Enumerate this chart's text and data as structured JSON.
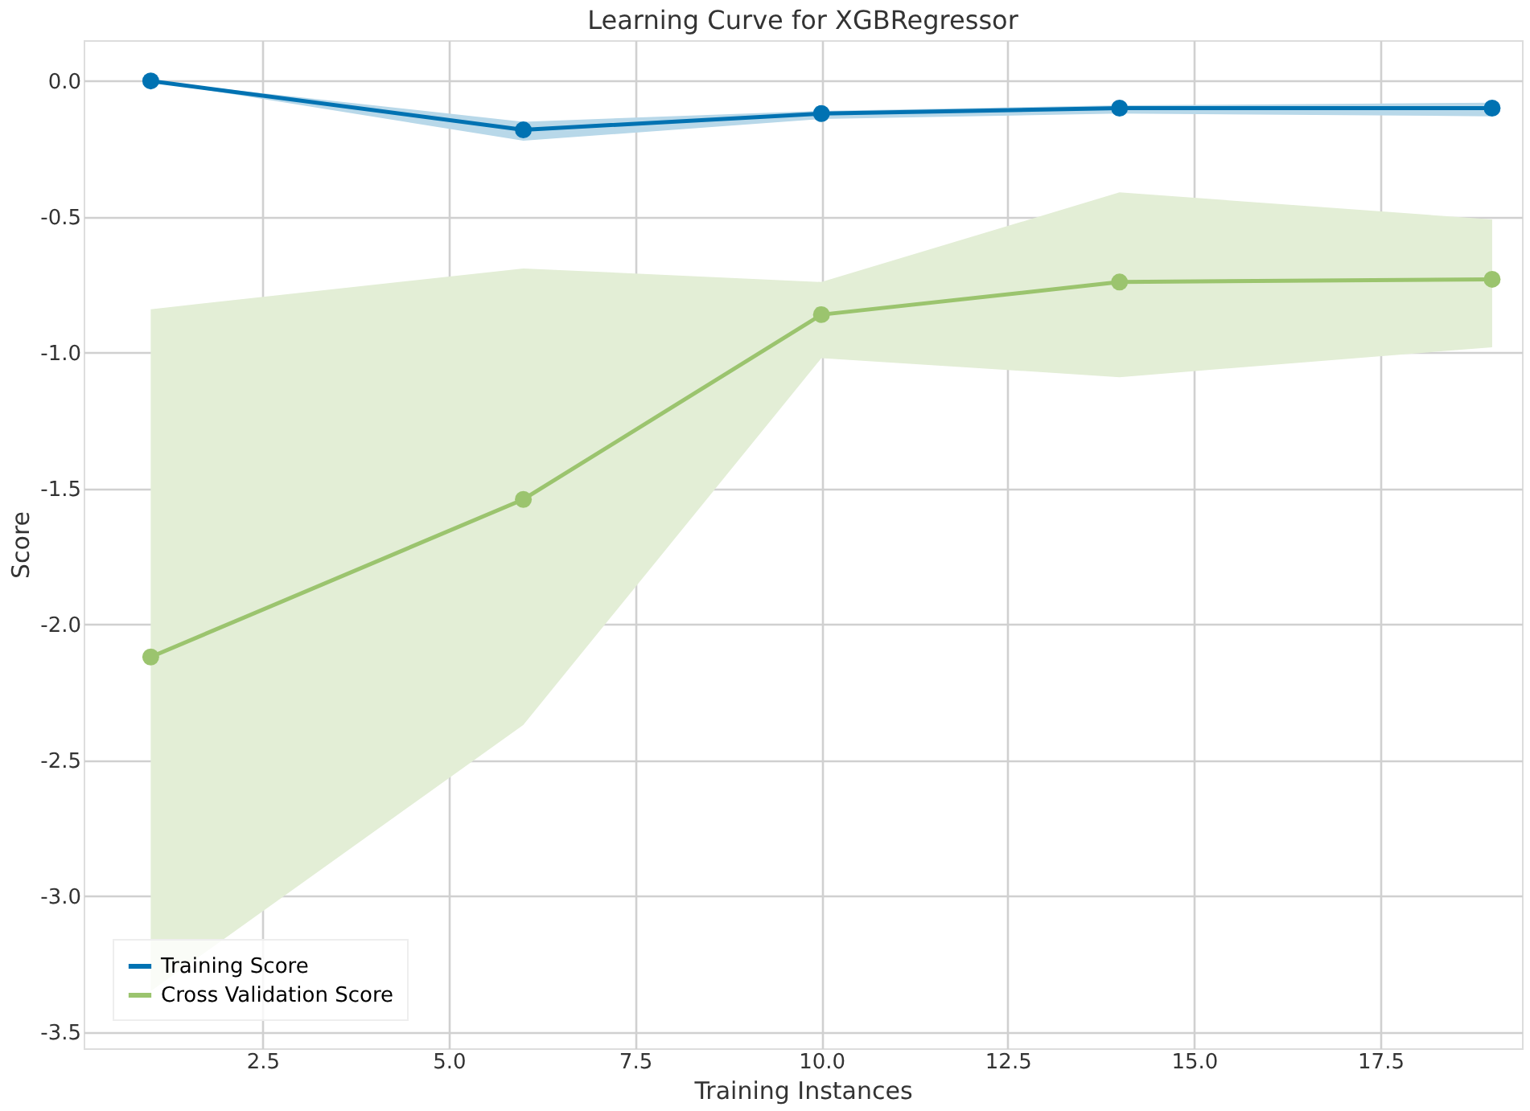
{
  "chart_data": {
    "type": "line",
    "title": "Learning Curve for XGBRegressor",
    "xlabel": "Training Instances",
    "ylabel": "Score",
    "x": [
      1,
      6,
      10,
      14,
      19
    ],
    "series": [
      {
        "name": "Training Score",
        "color": "#0072b2",
        "values": [
          0.0,
          -0.18,
          -0.12,
          -0.1,
          -0.1
        ],
        "lower": [
          0.0,
          -0.22,
          -0.14,
          -0.12,
          -0.13
        ],
        "upper": [
          0.0,
          -0.15,
          -0.11,
          -0.09,
          -0.08
        ]
      },
      {
        "name": "Cross Validation Score",
        "color": "#9bc46e",
        "values": [
          -2.12,
          -1.54,
          -0.86,
          -0.74,
          -0.73
        ],
        "lower": [
          -3.35,
          -2.37,
          -1.02,
          -1.09,
          -0.98
        ],
        "upper": [
          -0.84,
          -0.69,
          -0.74,
          -0.41,
          -0.51
        ]
      }
    ],
    "xlim": [
      0.1,
      19.4
    ],
    "xticks": [
      2.5,
      {
        "value": 5,
        "label": "5.0"
      },
      7.5,
      {
        "value": 10,
        "label": "10.0"
      },
      12.5,
      {
        "value": 15,
        "label": "15.0"
      },
      17.5
    ],
    "ylim": [
      -3.56,
      0.15
    ],
    "yticks": [
      {
        "value": 0,
        "label": "0.0"
      },
      -0.5,
      {
        "value": -1,
        "label": "-1.0"
      },
      -1.5,
      {
        "value": -2,
        "label": "-2.0"
      },
      -2.5,
      {
        "value": -3,
        "label": "-3.0"
      },
      -3.5
    ],
    "grid": true,
    "legend": "bottom left",
    "marker": "circle",
    "line_style": "solid"
  }
}
